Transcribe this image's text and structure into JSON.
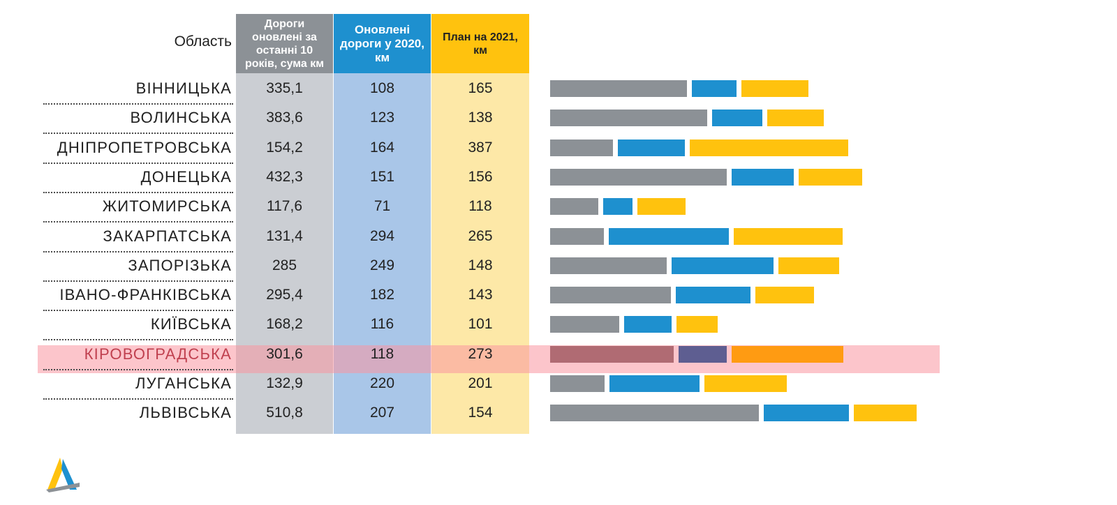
{
  "header": {
    "region": "Область",
    "col1": "Дороги оновлені за останні 10 років, сума км",
    "col2": "Оновлені дороги у 2020, км",
    "col3": "План на 2021, км"
  },
  "colors": {
    "gray": "#8c9196",
    "blue": "#1e90cf",
    "yellow": "#ffc20e",
    "highlight_gray": "#b06b73",
    "highlight_blue": "#5e5e91",
    "highlight_yellow": "#ff9b12"
  },
  "highlighted_region": "КІРОВОГРАДСЬКА",
  "chart_data": {
    "type": "table",
    "columns": [
      "Область",
      "Дороги оновлені за останні 10 років, сума км",
      "Оновлені дороги у 2020, км",
      "План на 2021, км"
    ],
    "rows": [
      {
        "region": "ВІННИЦЬКА",
        "last10": "335,1",
        "y2020": "108",
        "plan2021": "165",
        "bars": [
          335.1,
          108,
          165
        ]
      },
      {
        "region": "ВОЛИНСЬКА",
        "last10": "383,6",
        "y2020": "123",
        "plan2021": "138",
        "bars": [
          383.6,
          123,
          138
        ]
      },
      {
        "region": "ДНІПРОПЕТРОВСЬКА",
        "last10": "154,2",
        "y2020": "164",
        "plan2021": "387",
        "bars": [
          154.2,
          164,
          387
        ]
      },
      {
        "region": "ДОНЕЦЬКА",
        "last10": "432,3",
        "y2020": "151",
        "plan2021": "156",
        "bars": [
          432.3,
          151,
          156
        ]
      },
      {
        "region": "ЖИТОМИРСЬКА",
        "last10": "117,6",
        "y2020": "71",
        "plan2021": "118",
        "bars": [
          117.6,
          71,
          118
        ]
      },
      {
        "region": "ЗАКАРПАТСЬКА",
        "last10": "131,4",
        "y2020": "294",
        "plan2021": "265",
        "bars": [
          131.4,
          294,
          265
        ]
      },
      {
        "region": "ЗАПОРІЗЬКА",
        "last10": "285",
        "y2020": "249",
        "plan2021": "148",
        "bars": [
          285,
          249,
          148
        ]
      },
      {
        "region": "ІВАНО-ФРАНКІВСЬКА",
        "last10": "295,4",
        "y2020": "182",
        "plan2021": "143",
        "bars": [
          295.4,
          182,
          143
        ]
      },
      {
        "region": "КИЇВСЬКА",
        "last10": "168,2",
        "y2020": "116",
        "plan2021": "101",
        "bars": [
          168.2,
          116,
          101
        ]
      },
      {
        "region": "КІРОВОГРАДСЬКА",
        "last10": "301,6",
        "y2020": "118",
        "plan2021": "273",
        "bars": [
          301.6,
          118,
          273
        ]
      },
      {
        "region": "ЛУГАНСЬКА",
        "last10": "132,9",
        "y2020": "220",
        "plan2021": "201",
        "bars": [
          132.9,
          220,
          201
        ]
      },
      {
        "region": "ЛЬВІВСЬКА",
        "last10": "510,8",
        "y2020": "207",
        "plan2021": "154",
        "bars": [
          510.8,
          207,
          154
        ]
      }
    ]
  }
}
